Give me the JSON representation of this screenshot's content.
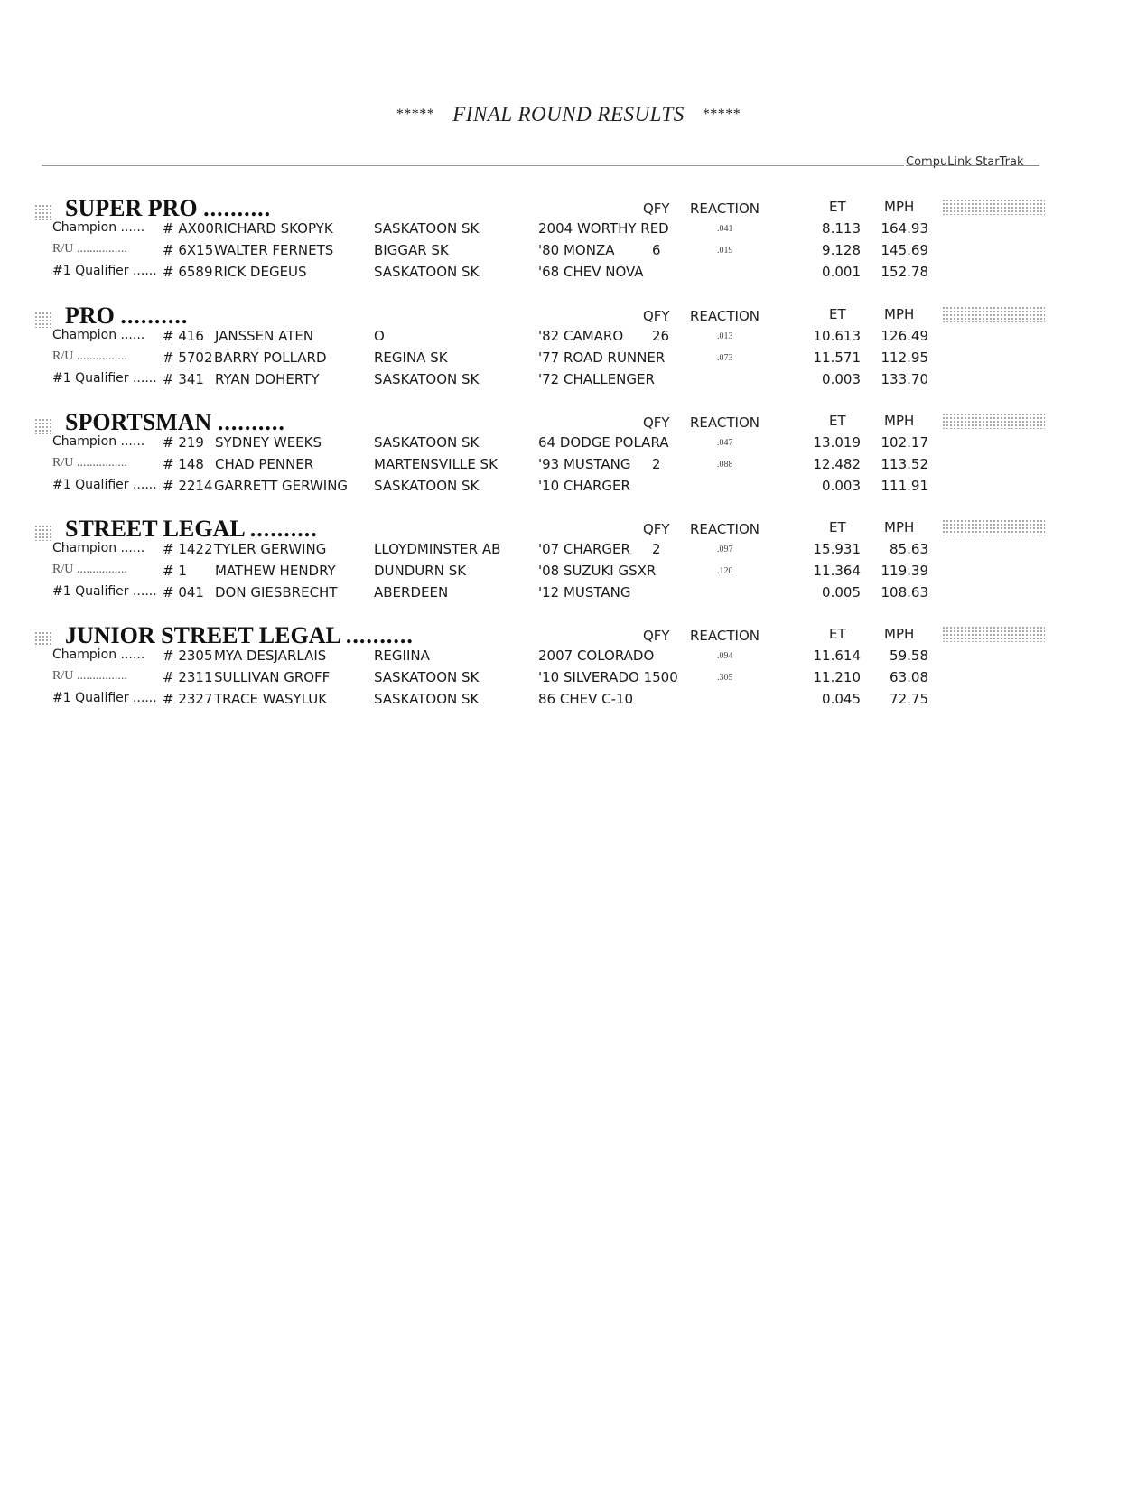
{
  "title": {
    "stars_left": "*****",
    "text": "FINAL ROUND RESULTS",
    "stars_right": "*****"
  },
  "brand": "CompuLink  StarTrak",
  "columns": {
    "qfy": "QFY",
    "reaction": "REACTION",
    "et": "ET",
    "mph": "MPH"
  },
  "sections": [
    {
      "name": "SUPER PRO",
      "leader": "..........",
      "rows": [
        {
          "label": "Champion  ......",
          "num": "# AX00",
          "name": "RICHARD SKOPYK",
          "city": "SASKATOON SK",
          "car": "2004 WORTHY RED",
          "qfy": "",
          "reaction": ".041",
          "et": "8.113",
          "mph": "164.93"
        },
        {
          "label": "R/U  ................",
          "num": "# 6X15",
          "name": "WALTER FERNETS",
          "city": "BIGGAR SK",
          "car": "'80 MONZA",
          "qfy": "6",
          "reaction": ".019",
          "et": "9.128",
          "mph": "145.69"
        },
        {
          "label": "#1 Qualifier ......",
          "num": "# 6589",
          "name": "RICK DEGEUS",
          "city": "SASKATOON SK",
          "car": "'68 CHEV NOVA",
          "qfy": "",
          "reaction": "",
          "et": "0.001",
          "mph": "152.78"
        }
      ]
    },
    {
      "name": "PRO",
      "leader": "..........",
      "rows": [
        {
          "label": "Champion  ......",
          "num": "# 416",
          "name": "JANSSEN ATEN",
          "city": "O",
          "car": "'82 CAMARO",
          "qfy": "26",
          "reaction": ".013",
          "et": "10.613",
          "mph": "126.49"
        },
        {
          "label": "R/U  ................",
          "num": "# 5702",
          "name": "BARRY POLLARD",
          "city": "REGINA SK",
          "car": "'77 ROAD RUNNER",
          "qfy": "",
          "reaction": ".073",
          "et": "11.571",
          "mph": "112.95"
        },
        {
          "label": "#1 Qualifier ......",
          "num": "# 341",
          "name": "RYAN DOHERTY",
          "city": "SASKATOON SK",
          "car": "'72 CHALLENGER",
          "qfy": "",
          "reaction": "",
          "et": "0.003",
          "mph": "133.70"
        }
      ]
    },
    {
      "name": "SPORTSMAN",
      "leader": "..........",
      "rows": [
        {
          "label": "Champion  ......",
          "num": "# 219",
          "name": "SYDNEY WEEKS",
          "city": "SASKATOON SK",
          "car": "64 DODGE POLARA",
          "qfy": "",
          "reaction": ".047",
          "et": "13.019",
          "mph": "102.17"
        },
        {
          "label": "R/U  ................",
          "num": "# 148",
          "name": "CHAD PENNER",
          "city": "MARTENSVILLE SK",
          "car": "'93 MUSTANG",
          "qfy": "2",
          "reaction": ".088",
          "et": "12.482",
          "mph": "113.52"
        },
        {
          "label": "#1 Qualifier ......",
          "num": "# 2214",
          "name": "GARRETT GERWING",
          "city": "SASKATOON  SK",
          "car": "'10 CHARGER",
          "qfy": "",
          "reaction": "",
          "et": "0.003",
          "mph": "111.91"
        }
      ]
    },
    {
      "name": "STREET LEGAL",
      "leader": "..........",
      "rows": [
        {
          "label": "Champion  ......",
          "num": "# 1422",
          "name": "TYLER GERWING",
          "city": "LLOYDMINSTER AB",
          "car": "'07 CHARGER",
          "qfy": "2",
          "reaction": ".097",
          "et": "15.931",
          "mph": "85.63"
        },
        {
          "label": "R/U  ................",
          "num": "# 1",
          "name": "MATHEW HENDRY",
          "city": "DUNDURN SK",
          "car": "'08 SUZUKI GSXR",
          "qfy": "",
          "reaction": ".120",
          "et": "11.364",
          "mph": "119.39"
        },
        {
          "label": "#1 Qualifier ......",
          "num": "# 041",
          "name": "DON GIESBRECHT",
          "city": "ABERDEEN",
          "car": "'12 MUSTANG",
          "qfy": "",
          "reaction": "",
          "et": "0.005",
          "mph": "108.63"
        }
      ]
    },
    {
      "name": "JUNIOR STREET LEGAL",
      "leader": "..........",
      "rows": [
        {
          "label": "Champion  ......",
          "num": "# 2305",
          "name": "MYA DESJARLAIS",
          "city": "REGIINA",
          "car": "2007 COLORADO",
          "qfy": "",
          "reaction": ".094",
          "et": "11.614",
          "mph": "59.58"
        },
        {
          "label": "R/U  ................",
          "num": "# 2311",
          "name": "SULLIVAN GROFF",
          "city": "SASKATOON  SK",
          "car": "'10 SILVERADO 1500",
          "qfy": "",
          "reaction": ".305",
          "et": "11.210",
          "mph": "63.08"
        },
        {
          "label": "#1 Qualifier ......",
          "num": "# 2327",
          "name": "TRACE WASYLUK",
          "city": "SASKATOON  SK",
          "car": "86 CHEV C-10",
          "qfy": "",
          "reaction": "",
          "et": "0.045",
          "mph": "72.75"
        }
      ]
    }
  ]
}
